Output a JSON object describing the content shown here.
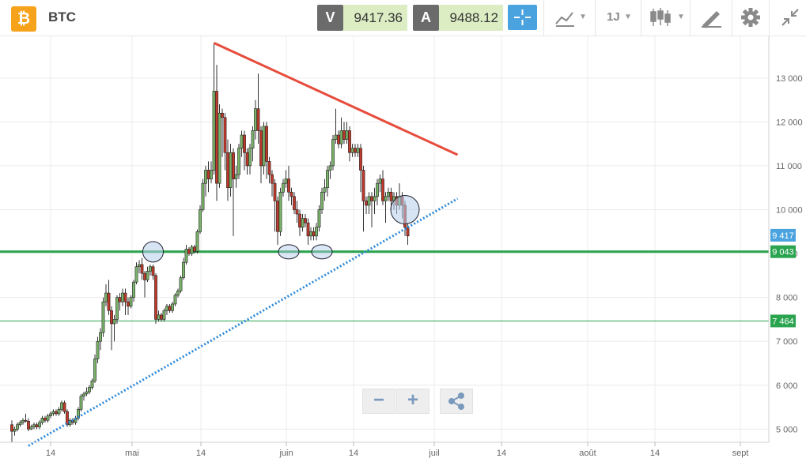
{
  "header": {
    "asset_symbol_icon": "bitcoin-icon",
    "asset_name": "BTC",
    "sell": {
      "tag": "V",
      "price": "9417.36"
    },
    "buy": {
      "tag": "A",
      "price": "9488.12"
    },
    "timeframe": "1J",
    "icons": [
      "crosshair-icon",
      "line-chart-icon",
      "timeframe-icon",
      "candlestick-icon",
      "draw-tool-icon",
      "gear-icon",
      "collapse-icon"
    ]
  },
  "zoom": {
    "minus": "−",
    "plus": "+",
    "share_icon": "share-icon"
  },
  "colors": {
    "up": "#7ab56a",
    "down": "#c0392b",
    "resistance": "#e74c3c",
    "support_line": "#2e8ad8",
    "horizontal": "#2aa44f",
    "current_price": "#4aa3df",
    "accent": "#4aa3df"
  },
  "chart_data": {
    "type": "candlestick",
    "asset": "BTC",
    "x_ticks": [
      "14",
      "mai",
      "14",
      "juin",
      "14",
      "juil",
      "14",
      "août",
      "14",
      "sept"
    ],
    "y_ticks": [
      "5 000",
      "6 000",
      "7 000",
      "8 000",
      "9 000",
      "10 000",
      "11 000",
      "12 000",
      "13 000"
    ],
    "ylim": [
      4700,
      13950
    ],
    "grid": true,
    "price_labels": [
      {
        "label": "9 417",
        "value": 9417,
        "kind": "current"
      },
      {
        "label": "9 043",
        "value": 9043,
        "kind": "level-major"
      },
      {
        "label": "7 464",
        "value": 7464,
        "kind": "level-minor"
      }
    ],
    "levels": [
      {
        "value": 9043,
        "style": "thick"
      },
      {
        "value": 7464,
        "style": "thin"
      }
    ],
    "candles": [
      [
        4.0,
        5100,
        4950,
        4700,
        5200
      ],
      [
        5.0,
        4950,
        5000,
        4850,
        5050
      ],
      [
        6.0,
        5000,
        5100,
        4950,
        5150
      ],
      [
        7.0,
        5100,
        5150,
        5050,
        5200
      ],
      [
        8.0,
        5150,
        5200,
        5100,
        5250
      ],
      [
        9.0,
        5200,
        5180,
        5150,
        5350
      ],
      [
        10.0,
        5180,
        5000,
        4950,
        5250
      ],
      [
        11.0,
        5000,
        5050,
        4980,
        5100
      ],
      [
        12.0,
        5050,
        5100,
        5000,
        5150
      ],
      [
        13.0,
        5100,
        5050,
        5000,
        5150
      ],
      [
        14.0,
        5050,
        5150,
        5000,
        5200
      ],
      [
        15.0,
        5150,
        5250,
        5100,
        5300
      ],
      [
        16.0,
        5250,
        5200,
        5150,
        5300
      ],
      [
        17.0,
        5200,
        5300,
        5150,
        5350
      ],
      [
        18.0,
        5300,
        5350,
        5250,
        5400
      ],
      [
        19.0,
        5350,
        5400,
        5300,
        5450
      ],
      [
        20.0,
        5400,
        5350,
        5300,
        5450
      ],
      [
        21.0,
        5350,
        5450,
        5300,
        5500
      ],
      [
        22.0,
        5450,
        5600,
        5400,
        5650
      ],
      [
        23.0,
        5600,
        5400,
        5350,
        5650
      ],
      [
        24.0,
        5400,
        5100,
        5050,
        5450
      ],
      [
        25.0,
        5100,
        5200,
        5050,
        5250
      ],
      [
        26.0,
        5200,
        5150,
        5100,
        5250
      ],
      [
        27.0,
        5150,
        5250,
        5100,
        5300
      ],
      [
        28.0,
        5250,
        5450,
        5200,
        5500
      ],
      [
        29.0,
        5450,
        5750,
        5400,
        5800
      ],
      [
        30.0,
        5750,
        5800,
        5650,
        5850
      ],
      [
        31.0,
        5800,
        5850,
        5750,
        5950
      ],
      [
        32.0,
        5850,
        5950,
        5800,
        6000
      ],
      [
        33.0,
        5950,
        6100,
        5900,
        6150
      ],
      [
        34.0,
        6100,
        6600,
        6050,
        6700
      ],
      [
        35.0,
        6600,
        7000,
        6500,
        7100
      ],
      [
        36.0,
        7000,
        7200,
        6800,
        7300
      ],
      [
        37.0,
        7200,
        7900,
        7100,
        8000
      ],
      [
        38.0,
        7900,
        8100,
        7800,
        8300
      ],
      [
        39.0,
        8100,
        7700,
        7600,
        8400
      ],
      [
        40.0,
        7700,
        7400,
        6800,
        7800
      ],
      [
        41.0,
        7400,
        7500,
        7000,
        7600
      ],
      [
        42.0,
        7500,
        8000,
        7400,
        8050
      ],
      [
        43.0,
        8000,
        7900,
        7700,
        8100
      ],
      [
        44.0,
        7900,
        8100,
        7800,
        8200
      ],
      [
        45.0,
        8100,
        7900,
        7600,
        8200
      ],
      [
        46.0,
        7900,
        7800,
        7600,
        8000
      ],
      [
        47.0,
        7800,
        8000,
        7750,
        8050
      ],
      [
        48.0,
        8000,
        8350,
        7900,
        8400
      ],
      [
        49.0,
        8350,
        8700,
        8300,
        8800
      ],
      [
        50.0,
        8700,
        8750,
        8550,
        8850
      ],
      [
        51.0,
        8750,
        8550,
        8400,
        8900
      ],
      [
        52.0,
        8550,
        8400,
        8000,
        8600
      ],
      [
        53.0,
        8400,
        8600,
        8350,
        8700
      ],
      [
        54.0,
        8600,
        8700,
        8500,
        8750
      ],
      [
        55.0,
        8700,
        8500,
        8400,
        8750
      ],
      [
        56.0,
        8500,
        7500,
        7400,
        8550
      ],
      [
        57.0,
        7500,
        7600,
        7450,
        7700
      ],
      [
        58.0,
        7600,
        7500,
        7450,
        7650
      ],
      [
        59.0,
        7500,
        7700,
        7450,
        7750
      ],
      [
        60.0,
        7700,
        7800,
        7600,
        7850
      ],
      [
        61.0,
        7800,
        7700,
        7650,
        7850
      ],
      [
        62.0,
        7700,
        7850,
        7650,
        7900
      ],
      [
        63.0,
        7850,
        8050,
        7800,
        8100
      ],
      [
        64.0,
        8050,
        8150,
        8000,
        8200
      ],
      [
        65.0,
        8150,
        8450,
        8100,
        8500
      ],
      [
        66.0,
        8450,
        8800,
        8400,
        8900
      ],
      [
        67.0,
        8800,
        9100,
        8750,
        9200
      ],
      [
        68.0,
        9100,
        9000,
        8950,
        9150
      ],
      [
        69.0,
        9000,
        9150,
        8950,
        9200
      ],
      [
        70.0,
        9150,
        9050,
        9000,
        9200
      ],
      [
        71.0,
        9050,
        9500,
        9000,
        9550
      ],
      [
        72.0,
        9500,
        10000,
        9450,
        10100
      ],
      [
        73.0,
        10000,
        10600,
        9950,
        10700
      ],
      [
        74.0,
        10600,
        10900,
        10300,
        11000
      ],
      [
        75.0,
        10900,
        10700,
        10400,
        11100
      ],
      [
        76.0,
        10700,
        10900,
        10600,
        11100
      ],
      [
        77.0,
        10900,
        12700,
        10800,
        13800
      ],
      [
        78.0,
        12700,
        10600,
        10200,
        13300
      ],
      [
        79.0,
        10600,
        12200,
        10500,
        12400
      ],
      [
        80.0,
        12200,
        12100,
        11200,
        12300
      ],
      [
        81.0,
        12100,
        11300,
        10900,
        12200
      ],
      [
        82.0,
        11300,
        10500,
        10200,
        11600
      ],
      [
        83.0,
        10500,
        11300,
        10300,
        11500
      ],
      [
        84.0,
        11300,
        10700,
        9400,
        11400
      ],
      [
        85.0,
        10700,
        10800,
        10500,
        11000
      ],
      [
        86.0,
        10800,
        11400,
        10700,
        11500
      ],
      [
        87.0,
        11400,
        11700,
        11200,
        11800
      ],
      [
        88.0,
        11700,
        11300,
        10900,
        11800
      ],
      [
        89.0,
        11300,
        11000,
        10800,
        11400
      ],
      [
        90.0,
        11000,
        11400,
        10800,
        11500
      ],
      [
        91.0,
        11400,
        11800,
        11100,
        11900
      ],
      [
        92.0,
        11800,
        12300,
        11600,
        12500
      ],
      [
        93.0,
        12300,
        11800,
        11500,
        13100
      ],
      [
        94.0,
        11800,
        11000,
        10600,
        11900
      ],
      [
        95.0,
        11000,
        11900,
        10800,
        12000
      ],
      [
        96.0,
        11900,
        11100,
        10700,
        12000
      ],
      [
        97.0,
        11100,
        10800,
        10600,
        11200
      ],
      [
        98.0,
        10800,
        10600,
        10300,
        10900
      ],
      [
        99.0,
        10600,
        10200,
        9500,
        10700
      ],
      [
        100.0,
        10200,
        9500,
        9200,
        10300
      ],
      [
        101.0,
        9500,
        10400,
        9400,
        10500
      ],
      [
        102.0,
        10400,
        10600,
        10300,
        10700
      ],
      [
        103.0,
        10600,
        10700,
        10500,
        10900
      ],
      [
        104.0,
        10700,
        10400,
        10200,
        11000
      ],
      [
        105.0,
        10400,
        10300,
        10100,
        10500
      ],
      [
        106.0,
        10300,
        10000,
        9900,
        10400
      ],
      [
        107.0,
        10000,
        9900,
        9700,
        10200
      ],
      [
        108.0,
        9900,
        9600,
        9400,
        10000
      ],
      [
        109.0,
        9600,
        9800,
        9500,
        9900
      ],
      [
        110.0,
        9800,
        9700,
        9600,
        9900
      ],
      [
        111.0,
        9700,
        9400,
        9200,
        9800
      ],
      [
        112.0,
        9400,
        9500,
        9300,
        9600
      ],
      [
        113.0,
        9500,
        9400,
        9300,
        9600
      ],
      [
        114.0,
        9400,
        9600,
        9300,
        9700
      ],
      [
        115.0,
        9600,
        10000,
        9500,
        10100
      ],
      [
        116.0,
        10000,
        10400,
        9900,
        10500
      ],
      [
        117.0,
        10400,
        10500,
        10200,
        10700
      ],
      [
        118.0,
        10500,
        10900,
        10300,
        11000
      ],
      [
        119.0,
        10900,
        11000,
        10700,
        11100
      ],
      [
        120.0,
        11000,
        11600,
        10900,
        11700
      ],
      [
        121.0,
        11600,
        11700,
        11500,
        12300
      ],
      [
        122.0,
        11700,
        11500,
        11400,
        11800
      ],
      [
        123.0,
        11500,
        11800,
        11400,
        12100
      ],
      [
        124.0,
        11800,
        11600,
        11500,
        12000
      ],
      [
        125.0,
        11600,
        11800,
        11500,
        12000
      ],
      [
        126.0,
        11800,
        11300,
        11100,
        11900
      ],
      [
        127.0,
        11300,
        11400,
        11200,
        11500
      ],
      [
        128.0,
        11400,
        11300,
        11200,
        11500
      ],
      [
        129.0,
        11300,
        11400,
        11200,
        11500
      ],
      [
        130.0,
        11400,
        10900,
        10400,
        11500
      ],
      [
        131.0,
        10900,
        10200,
        9500,
        11000
      ],
      [
        132.0,
        10200,
        10100,
        9900,
        10300
      ],
      [
        133.0,
        10100,
        10300,
        9900,
        10400
      ],
      [
        134.0,
        10300,
        10200,
        9600,
        10400
      ],
      [
        135.0,
        10200,
        10300,
        9900,
        10500
      ],
      [
        136.0,
        10300,
        10600,
        10100,
        10700
      ],
      [
        137.0,
        10600,
        10700,
        10400,
        10800
      ],
      [
        138.0,
        10700,
        10200,
        10100,
        10900
      ],
      [
        139.0,
        10200,
        10300,
        9700,
        10400
      ],
      [
        140.0,
        10300,
        10400,
        10200,
        10500
      ],
      [
        141.0,
        10400,
        10200,
        10000,
        10500
      ],
      [
        142.0,
        10200,
        10300,
        10000,
        10400
      ],
      [
        143.0,
        10300,
        10100,
        9900,
        10400
      ],
      [
        144.0,
        10100,
        10300,
        10000,
        10600
      ],
      [
        145.0,
        10300,
        10100,
        9800,
        10400
      ],
      [
        146.0,
        10100,
        9600,
        9400,
        10200
      ],
      [
        147.0,
        9600,
        9400,
        9200,
        9700
      ]
    ],
    "trendlines": [
      {
        "name": "",
        "from": [
          77,
          13800
        ],
        "to": [
          165,
          11250
        ],
        "color": "#e74c3c",
        "style": "solid"
      },
      {
        "name": "",
        "from": [
          10,
          4620
        ],
        "to": [
          165,
          10250
        ],
        "color": "#2e8ad8",
        "style": "dotted"
      }
    ],
    "markers": [
      {
        "x": 55.0,
        "y": 9040,
        "shape": "circle"
      },
      {
        "x": 104.0,
        "y": 9040,
        "shape": "ellipse"
      },
      {
        "x": 116.0,
        "y": 9040,
        "shape": "ellipse"
      },
      {
        "x": 146.0,
        "y": 10000,
        "shape": "circle"
      }
    ]
  }
}
